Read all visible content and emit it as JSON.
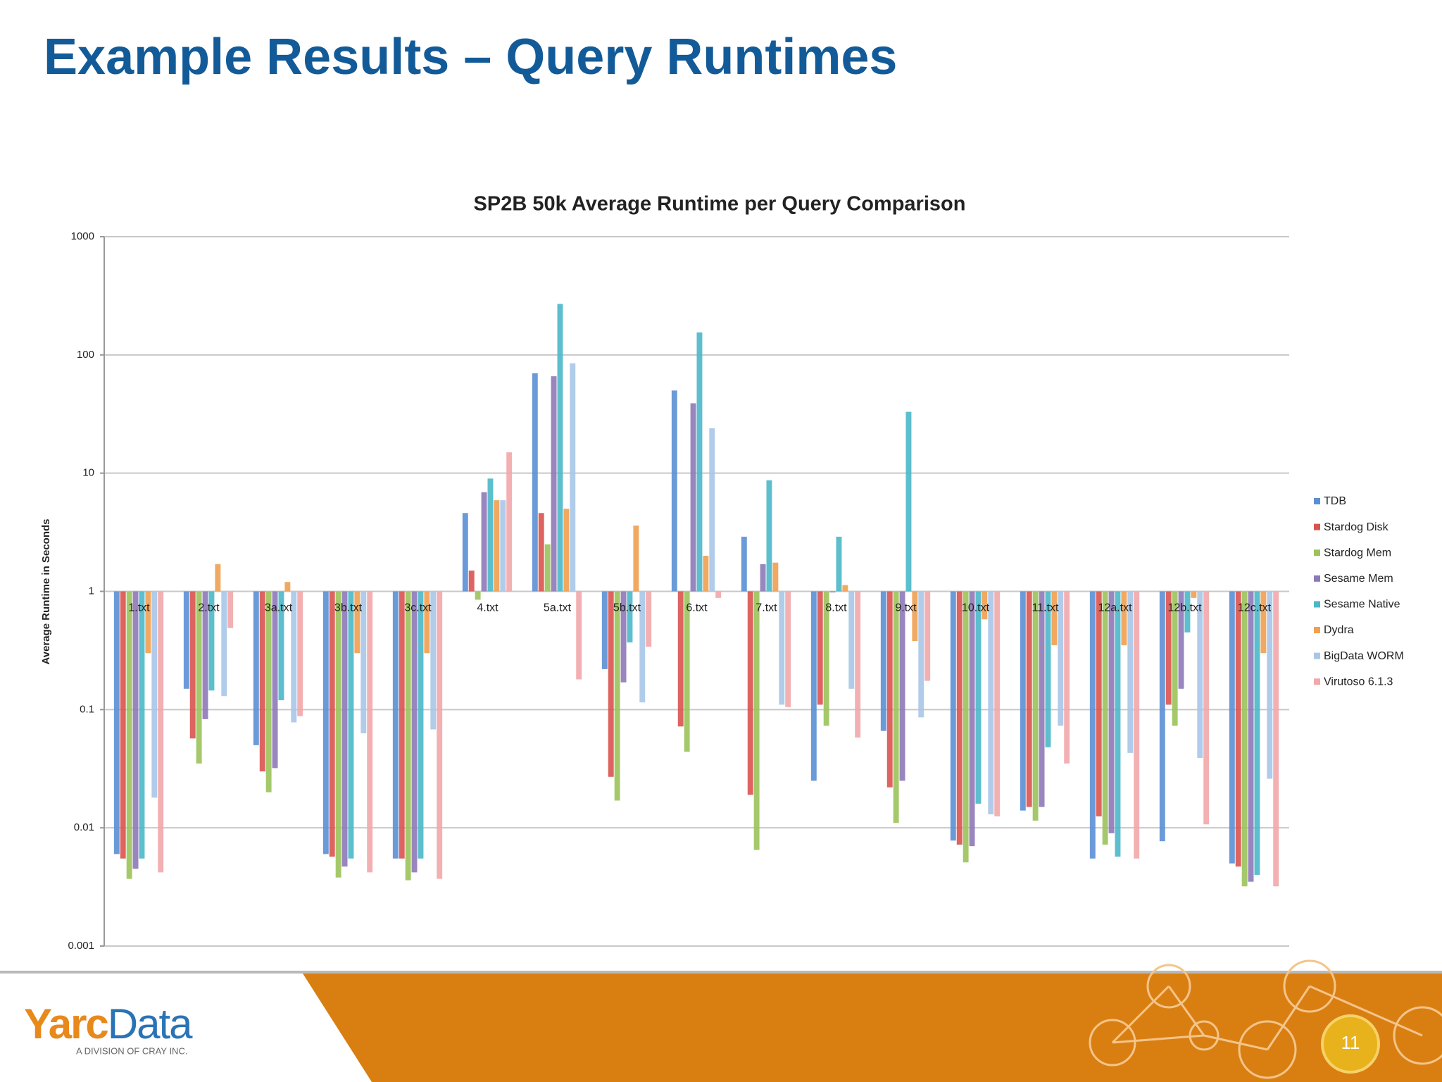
{
  "slide_title": "Example Results – Query Runtimes",
  "chart_data": {
    "type": "bar",
    "title": "SP2B 50k Average Runtime per Query Comparison",
    "y_label": "Average Runtime in Seconds",
    "log_scale": true,
    "grid": true,
    "legend": "right",
    "ylim": [
      0.001,
      1000
    ],
    "yticks": [
      0.001,
      0.01,
      0.1,
      1,
      10,
      100,
      1000
    ],
    "categories": [
      "1.txt",
      "2.txt",
      "3a.txt",
      "3b.txt",
      "3c.txt",
      "4.txt",
      "5a.txt",
      "5b.txt",
      "6.txt",
      "7.txt",
      "8.txt",
      "9.txt",
      "10.txt",
      "11.txt",
      "12a.txt",
      "12b.txt",
      "12c.txt"
    ],
    "series": [
      {
        "name": "TDB",
        "color": "#5b8fd4",
        "values": [
          0.006,
          0.15,
          0.05,
          0.006,
          0.0055,
          4.6,
          70,
          0.22,
          50,
          2.9,
          0.025,
          0.066,
          0.0078,
          0.014,
          0.0055,
          0.0077,
          0.005
        ]
      },
      {
        "name": "Stardog Disk",
        "color": "#d9534f",
        "values": [
          0.0055,
          0.057,
          0.03,
          0.0057,
          0.0055,
          1.5,
          4.6,
          0.027,
          0.072,
          0.019,
          0.11,
          0.022,
          0.0072,
          0.015,
          0.0125,
          0.11,
          0.0047
        ]
      },
      {
        "name": "Stardog Mem",
        "color": "#9bc35a",
        "values": [
          0.0037,
          0.035,
          0.02,
          0.0038,
          0.0036,
          0.85,
          2.5,
          0.017,
          0.044,
          0.0065,
          0.073,
          0.011,
          0.0051,
          0.0115,
          0.0072,
          0.073,
          0.0032
        ]
      },
      {
        "name": "Sesame Mem",
        "color": "#8e79b8",
        "values": [
          0.0045,
          0.083,
          0.032,
          0.0047,
          0.0042,
          6.9,
          66,
          0.17,
          39,
          1.7,
          0.98,
          0.025,
          0.007,
          0.015,
          0.009,
          0.15,
          0.0035
        ]
      },
      {
        "name": "Sesame Native",
        "color": "#4bb8c8",
        "values": [
          0.0055,
          0.145,
          0.12,
          0.0055,
          0.0055,
          9,
          270,
          0.37,
          155,
          8.7,
          2.9,
          33,
          0.016,
          0.048,
          0.0057,
          0.45,
          0.004
        ]
      },
      {
        "name": "Dydra",
        "color": "#f0a050",
        "values": [
          0.3,
          1.7,
          1.2,
          0.3,
          0.3,
          5.9,
          5,
          3.6,
          2,
          1.75,
          1.13,
          0.38,
          0.58,
          0.35,
          0.35,
          0.88,
          0.3
        ]
      },
      {
        "name": "BigData WORM",
        "color": "#a9c6e8",
        "values": [
          0.018,
          0.13,
          0.078,
          0.063,
          0.068,
          5.9,
          85,
          0.115,
          24,
          0.11,
          0.15,
          0.086,
          0.013,
          0.073,
          0.043,
          0.039,
          0.026
        ]
      },
      {
        "name": "Virutoso 6.1.3",
        "color": "#f2a7aa",
        "values": [
          0.0042,
          0.49,
          0.088,
          0.0042,
          0.0037,
          15,
          0.18,
          0.34,
          0.88,
          0.105,
          0.058,
          0.175,
          0.0125,
          0.035,
          0.0055,
          0.0107,
          0.0032
        ]
      }
    ]
  },
  "footer": {
    "logo": [
      "Yarc",
      "Data"
    ],
    "logo_subtitle": "A DIVISION OF CRAY INC.",
    "page_number": "11"
  }
}
